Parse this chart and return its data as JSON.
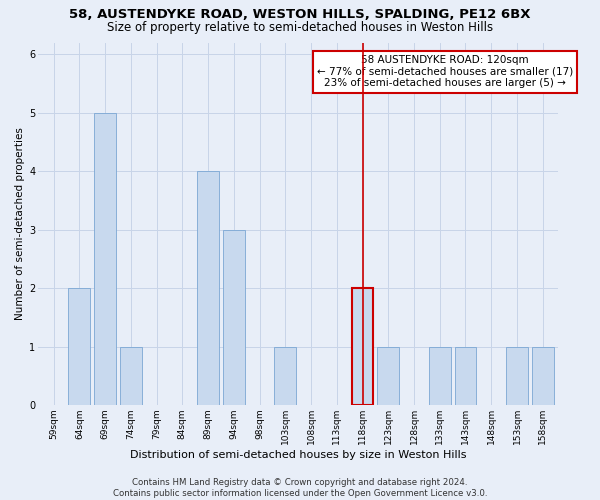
{
  "title": "58, AUSTENDYKE ROAD, WESTON HILLS, SPALDING, PE12 6BX",
  "subtitle": "Size of property relative to semi-detached houses in Weston Hills",
  "xlabel": "Distribution of semi-detached houses by size in Weston Hills",
  "ylabel": "Number of semi-detached properties",
  "categories": [
    "59sqm",
    "64sqm",
    "69sqm",
    "74sqm",
    "79sqm",
    "84sqm",
    "89sqm",
    "94sqm",
    "98sqm",
    "103sqm",
    "108sqm",
    "113sqm",
    "118sqm",
    "123sqm",
    "128sqm",
    "133sqm",
    "143sqm",
    "148sqm",
    "153sqm",
    "158sqm"
  ],
  "values": [
    0,
    2,
    5,
    1,
    0,
    0,
    4,
    3,
    0,
    1,
    0,
    0,
    2,
    1,
    0,
    1,
    1,
    0,
    1,
    1
  ],
  "bar_color": "#c8d9ee",
  "bar_edge_color": "#7ba7d4",
  "highlight_bar_index": 12,
  "highlight_bar_edge_color": "#cc0000",
  "vline_color": "#cc0000",
  "annotation_text": "58 AUSTENDYKE ROAD: 120sqm\n← 77% of semi-detached houses are smaller (17)\n23% of semi-detached houses are larger (5) →",
  "annotation_box_color": "#ffffff",
  "annotation_box_edge_color": "#cc0000",
  "ylim": [
    0,
    6.2
  ],
  "yticks": [
    0,
    1,
    2,
    3,
    4,
    5,
    6
  ],
  "grid_color": "#c8d4e8",
  "background_color": "#e8eef8",
  "plot_bg_color": "#e8eef8",
  "footer_text": "Contains HM Land Registry data © Crown copyright and database right 2024.\nContains public sector information licensed under the Open Government Licence v3.0.",
  "title_fontsize": 9.5,
  "subtitle_fontsize": 8.5,
  "xlabel_fontsize": 8,
  "ylabel_fontsize": 7.5,
  "tick_fontsize": 6.5,
  "annotation_fontsize": 7.5,
  "footer_fontsize": 6.2
}
